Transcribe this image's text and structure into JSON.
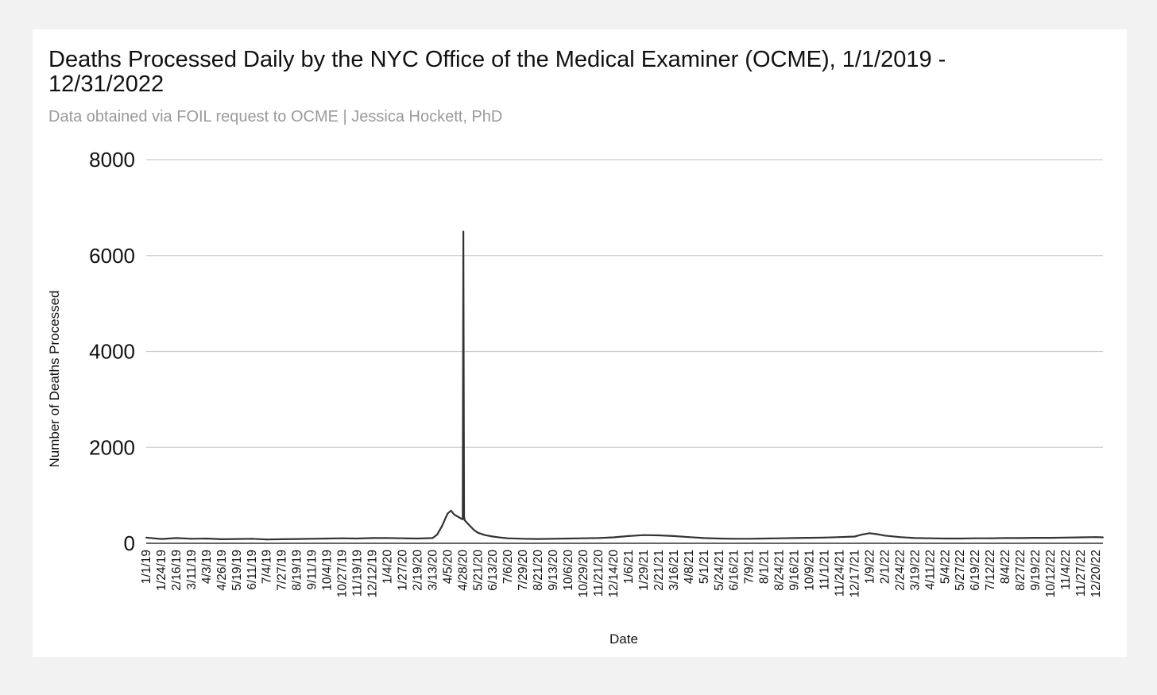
{
  "chart_data": {
    "type": "line",
    "title": "Deaths Processed Daily by the NYC Office of the Medical Examiner (OCME), 1/1/2019 - 12/31/2022",
    "subtitle": "Data obtained via FOIL request to OCME | Jessica Hockett, PhD",
    "xlabel": "Date",
    "ylabel": "Number of Deaths Processed",
    "ylim": [
      0,
      8000
    ],
    "yticks": [
      0,
      2000,
      4000,
      6000,
      8000
    ],
    "xlim": [
      "1/1/19",
      "12/31/22"
    ],
    "xtick_labels": [
      "1/1/19",
      "1/24/19",
      "2/16/19",
      "3/11/19",
      "4/3/19",
      "4/26/19",
      "5/19/19",
      "6/11/19",
      "7/4/19",
      "7/27/19",
      "8/19/19",
      "9/11/19",
      "10/4/19",
      "10/27/19",
      "11/19/19",
      "12/12/19",
      "1/4/20",
      "1/27/20",
      "2/19/20",
      "3/13/20",
      "4/5/20",
      "4/28/20",
      "5/21/20",
      "6/13/20",
      "7/6/20",
      "7/29/20",
      "8/21/20",
      "9/13/20",
      "10/6/20",
      "10/29/20",
      "11/21/20",
      "12/14/20",
      "1/6/21",
      "1/29/21",
      "2/21/21",
      "3/16/21",
      "4/8/21",
      "5/1/21",
      "5/24/21",
      "6/16/21",
      "7/9/21",
      "8/1/21",
      "8/24/21",
      "9/16/21",
      "10/9/21",
      "11/1/21",
      "11/24/21",
      "12/17/21",
      "1/9/22",
      "2/1/22",
      "2/24/22",
      "3/19/22",
      "4/11/22",
      "5/4/22",
      "5/27/22",
      "6/19/22",
      "7/12/22",
      "8/4/22",
      "8/27/22",
      "9/19/22",
      "10/12/22",
      "11/4/22",
      "11/27/22",
      "12/20/22"
    ],
    "grid": true,
    "legend": "none",
    "line_color": "#333333",
    "gridline_color": "#cccccc",
    "series": [
      {
        "x": [
          "1/1/19",
          "1/24/19",
          "2/16/19",
          "3/11/19",
          "4/3/19",
          "4/26/19",
          "5/19/19",
          "6/11/19",
          "7/4/19",
          "7/27/19",
          "8/19/19",
          "9/11/19",
          "10/4/19",
          "10/27/19",
          "11/19/19",
          "12/12/19",
          "1/4/20",
          "1/27/20",
          "2/19/20",
          "3/13/20",
          "3/20/20",
          "3/27/20",
          "4/1/20",
          "4/5/20",
          "4/10/20",
          "4/15/20",
          "4/20/20",
          "4/25/20",
          "4/28/20",
          "4/29/20",
          "4/30/20",
          "5/1/20",
          "5/5/20",
          "5/10/20",
          "5/15/20",
          "5/21/20",
          "6/1/20",
          "6/13/20",
          "6/25/20",
          "7/6/20",
          "7/29/20",
          "8/21/20",
          "9/13/20",
          "10/6/20",
          "10/29/20",
          "11/21/20",
          "12/14/20",
          "1/6/21",
          "1/29/21",
          "2/21/21",
          "3/16/21",
          "4/8/21",
          "5/1/21",
          "5/24/21",
          "6/16/21",
          "7/9/21",
          "8/1/21",
          "8/24/21",
          "9/16/21",
          "10/9/21",
          "11/1/21",
          "11/24/21",
          "12/17/21",
          "12/28/21",
          "1/9/22",
          "1/20/22",
          "2/1/22",
          "2/24/22",
          "3/19/22",
          "4/11/22",
          "5/4/22",
          "5/27/22",
          "6/19/22",
          "7/12/22",
          "8/4/22",
          "8/27/22",
          "9/19/22",
          "10/12/22",
          "11/4/22",
          "11/27/22",
          "12/20/22",
          "12/31/22"
        ],
        "values": [
          120,
          90,
          110,
          95,
          100,
          85,
          90,
          95,
          80,
          85,
          90,
          95,
          100,
          105,
          100,
          110,
          110,
          105,
          100,
          110,
          180,
          350,
          500,
          620,
          680,
          600,
          560,
          520,
          500,
          6500,
          560,
          480,
          420,
          350,
          280,
          220,
          170,
          140,
          120,
          105,
          95,
          90,
          95,
          100,
          105,
          110,
          125,
          150,
          170,
          165,
          150,
          130,
          110,
          100,
          95,
          95,
          100,
          105,
          110,
          115,
          120,
          130,
          140,
          180,
          210,
          190,
          160,
          130,
          110,
          105,
          100,
          100,
          105,
          105,
          110,
          110,
          115,
          115,
          120,
          125,
          130,
          125
        ]
      }
    ]
  }
}
